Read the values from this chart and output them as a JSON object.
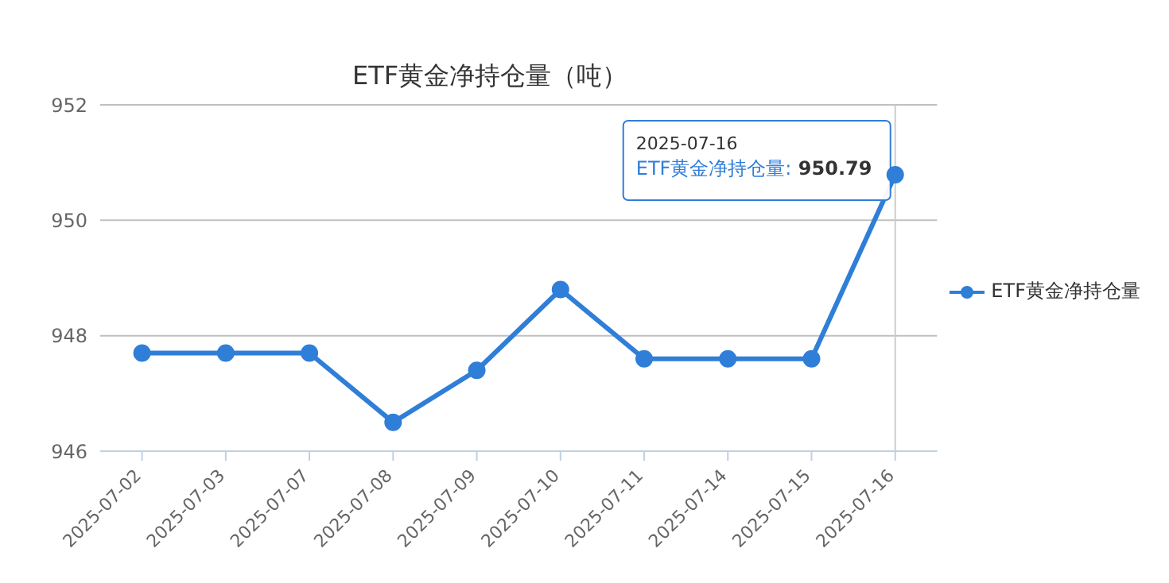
{
  "chart_data": {
    "type": "line",
    "title": "ETF黄金净持仓量（吨）",
    "categories": [
      "2025-07-02",
      "2025-07-03",
      "2025-07-07",
      "2025-07-08",
      "2025-07-09",
      "2025-07-10",
      "2025-07-11",
      "2025-07-14",
      "2025-07-15",
      "2025-07-16"
    ],
    "series": [
      {
        "name": "ETF黄金净持仓量",
        "color": "#2f7ed8",
        "values": [
          947.7,
          947.7,
          947.7,
          946.5,
          947.4,
          948.8,
          947.6,
          947.6,
          947.6,
          950.79
        ]
      }
    ],
    "ylim": [
      946,
      952
    ],
    "yticks": [
      946,
      948,
      950,
      952
    ],
    "grid": "y",
    "legend": "right",
    "marker": "circle",
    "line_style": "solid",
    "ref_lines": [
      {
        "axis": "x",
        "value": "2025-07-16",
        "color": "#cccccc"
      }
    ],
    "annotations": [
      {
        "text": "2025-07-16\nETF黄金净持仓量: 950.79",
        "x": "2025-07-16",
        "y": 950.79
      }
    ]
  }
}
